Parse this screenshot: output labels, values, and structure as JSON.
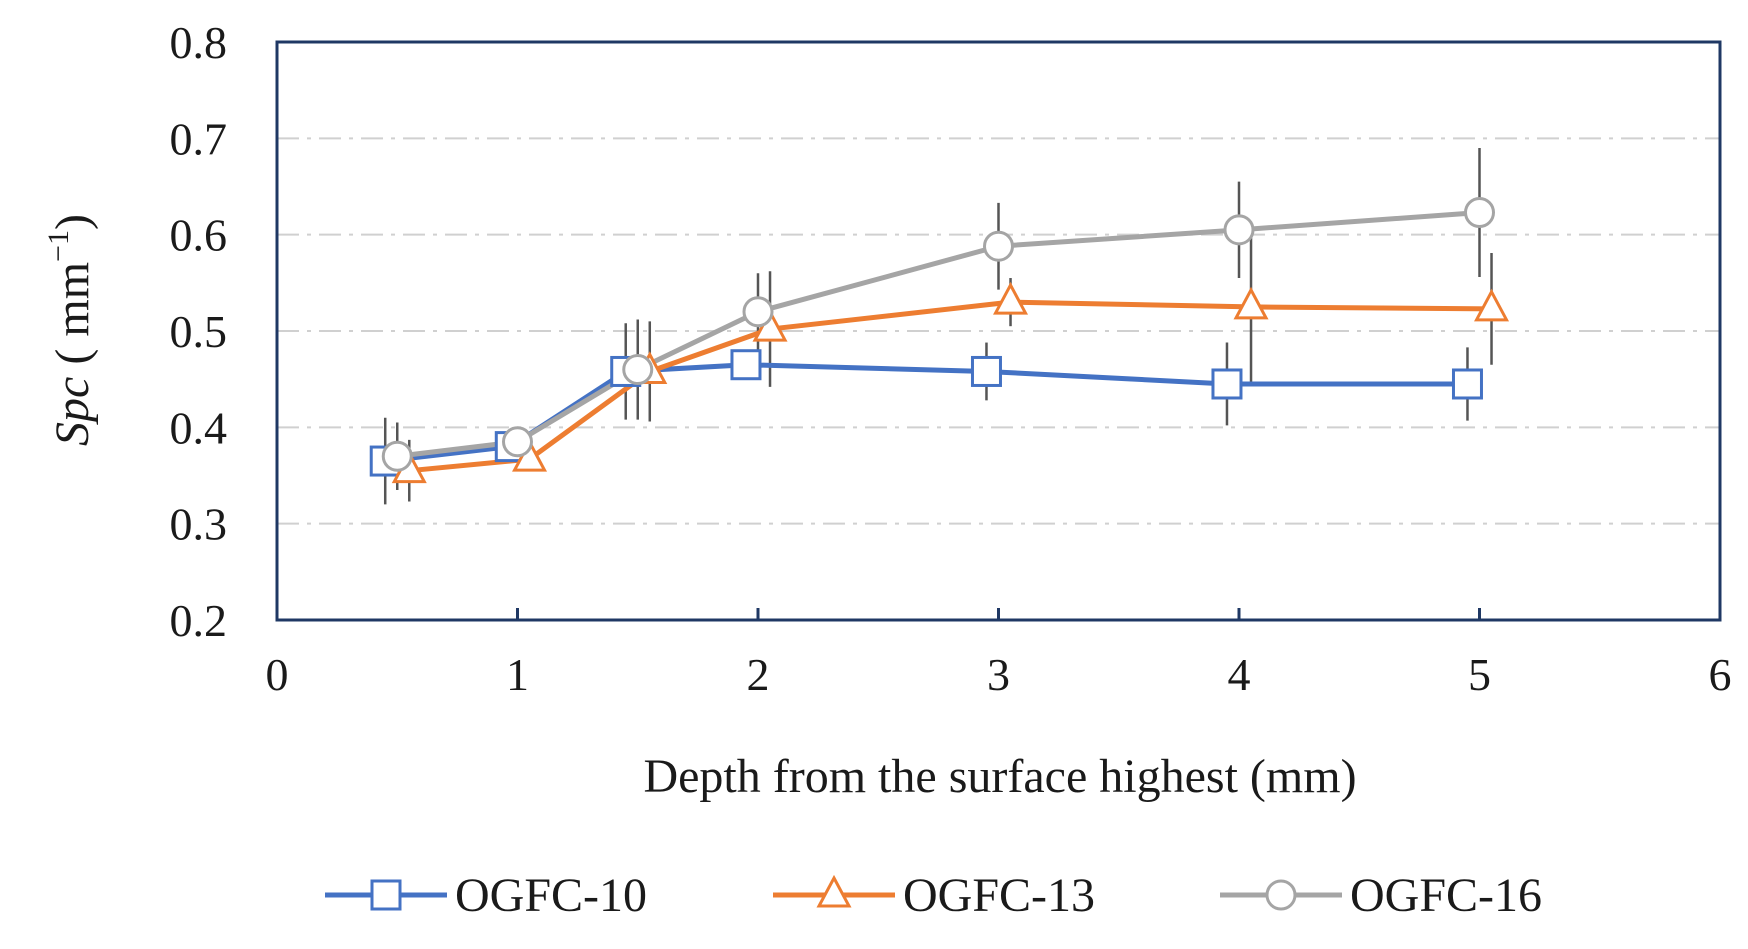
{
  "chart_data": {
    "type": "line",
    "xlabel": "Depth from the surface highest (mm)",
    "ylabel": {
      "symbol": "Spc",
      "unit_open": " ( mm",
      "unit_exp": "−1",
      "unit_close": ")"
    },
    "xlim": [
      0,
      6
    ],
    "ylim": [
      0.2,
      0.8
    ],
    "xticks": [
      0,
      1,
      2,
      3,
      4,
      5,
      6
    ],
    "xtick_labels": [
      "0",
      "1",
      "2",
      "3",
      "4",
      "5",
      "6"
    ],
    "yticks": [
      0.2,
      0.3,
      0.4,
      0.5,
      0.6,
      0.7,
      0.8
    ],
    "ytick_labels": [
      "0.2",
      "0.3",
      "0.4",
      "0.5",
      "0.6",
      "0.7",
      "0.8"
    ],
    "grid": "horizontal dash-dot",
    "legend_position": "bottom",
    "series": [
      {
        "name": "OGFC-10",
        "marker": "square",
        "color": "#4472C4",
        "x": [
          0.45,
          0.97,
          1.45,
          1.95,
          2.95,
          3.95,
          4.95
        ],
        "y": [
          0.365,
          0.38,
          0.458,
          0.465,
          0.458,
          0.445,
          0.445
        ],
        "error": [
          0.045,
          0.015,
          0.05,
          0.012,
          0.03,
          0.043,
          0.038
        ]
      },
      {
        "name": "OGFC-13",
        "marker": "triangle",
        "color": "#ED7D31",
        "x": [
          0.55,
          1.05,
          1.55,
          2.05,
          3.05,
          4.05,
          5.05
        ],
        "y": [
          0.355,
          0.367,
          0.458,
          0.502,
          0.53,
          0.525,
          0.523
        ],
        "error": [
          0.032,
          0.01,
          0.052,
          0.06,
          0.025,
          0.08,
          0.058
        ]
      },
      {
        "name": "OGFC-16",
        "marker": "circle",
        "color": "#A5A5A5",
        "x": [
          0.5,
          1.0,
          1.5,
          2.0,
          3.0,
          4.0,
          5.0
        ],
        "y": [
          0.37,
          0.385,
          0.46,
          0.52,
          0.588,
          0.605,
          0.623
        ],
        "error": [
          0.035,
          0.01,
          0.052,
          0.04,
          0.045,
          0.05,
          0.067
        ]
      }
    ],
    "colors": {
      "axis_frame": "#1F3864",
      "grid": "#D0D0D0",
      "error_bar": "#555555"
    }
  }
}
